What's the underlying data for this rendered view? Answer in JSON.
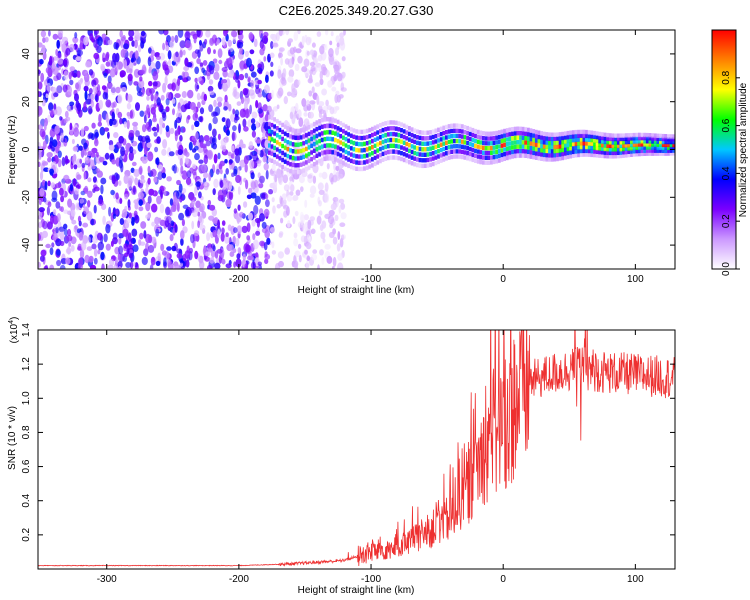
{
  "title": "C2E6.2025.349.20.27.G30",
  "chart_data": [
    {
      "type": "heatmap",
      "name": "spectrogram",
      "xlabel": "Height of straight line (km)",
      "ylabel": "Frequency (Hz)",
      "xlim": [
        -352,
        130
      ],
      "ylim": [
        -50,
        50
      ],
      "xticks": [
        -300,
        -200,
        -100,
        0,
        100
      ],
      "yticks": [
        -40,
        -20,
        0,
        20,
        40
      ],
      "colorbar": {
        "label": "Normalized spectral amplitude",
        "range": [
          0,
          1
        ],
        "ticks": [
          "0.0",
          "0.2",
          "0.4",
          "0.6",
          "0.8"
        ],
        "colormap": [
          "#ffffff",
          "#cc99ff",
          "#7a00ff",
          "#0000ff",
          "#00c8ff",
          "#00ff00",
          "#ffff00",
          "#ff8000",
          "#ff0000"
        ]
      },
      "regions": [
        {
          "description": "noise",
          "x_range": [
            -352,
            -175
          ],
          "freq_range": [
            -50,
            50
          ],
          "level": 0.15
        },
        {
          "description": "sparse noise",
          "x_range": [
            -175,
            -120
          ],
          "freq_range": [
            -50,
            50
          ],
          "level": 0.05
        },
        {
          "description": "signal band",
          "x_range": [
            -178,
            130
          ],
          "center_freq": 2,
          "level": 0.6
        }
      ]
    },
    {
      "type": "line",
      "name": "snr",
      "xlabel": "Height of straight line (km)",
      "ylabel": "SNR (10 * v/v)",
      "y_scale_label": "(x10",
      "y_scale_exponent": "4",
      "xlim": [
        -352,
        130
      ],
      "ylim": [
        0,
        1.4
      ],
      "xticks": [
        -300,
        -200,
        -100,
        0,
        100
      ],
      "yticks": [
        0.2,
        0.4,
        0.6,
        0.8,
        1.0,
        1.2,
        1.4
      ],
      "color": "#ee3030",
      "trend": {
        "x": [
          -352,
          -200,
          -160,
          -120,
          -100,
          -80,
          -60,
          -40,
          -30,
          -20,
          -10,
          0,
          10,
          20,
          40,
          60,
          80,
          100,
          130
        ],
        "y": [
          0.02,
          0.02,
          0.03,
          0.05,
          0.1,
          0.13,
          0.2,
          0.3,
          0.45,
          0.6,
          0.78,
          0.85,
          1.0,
          1.1,
          1.15,
          1.18,
          1.15,
          1.14,
          1.12
        ]
      }
    }
  ]
}
